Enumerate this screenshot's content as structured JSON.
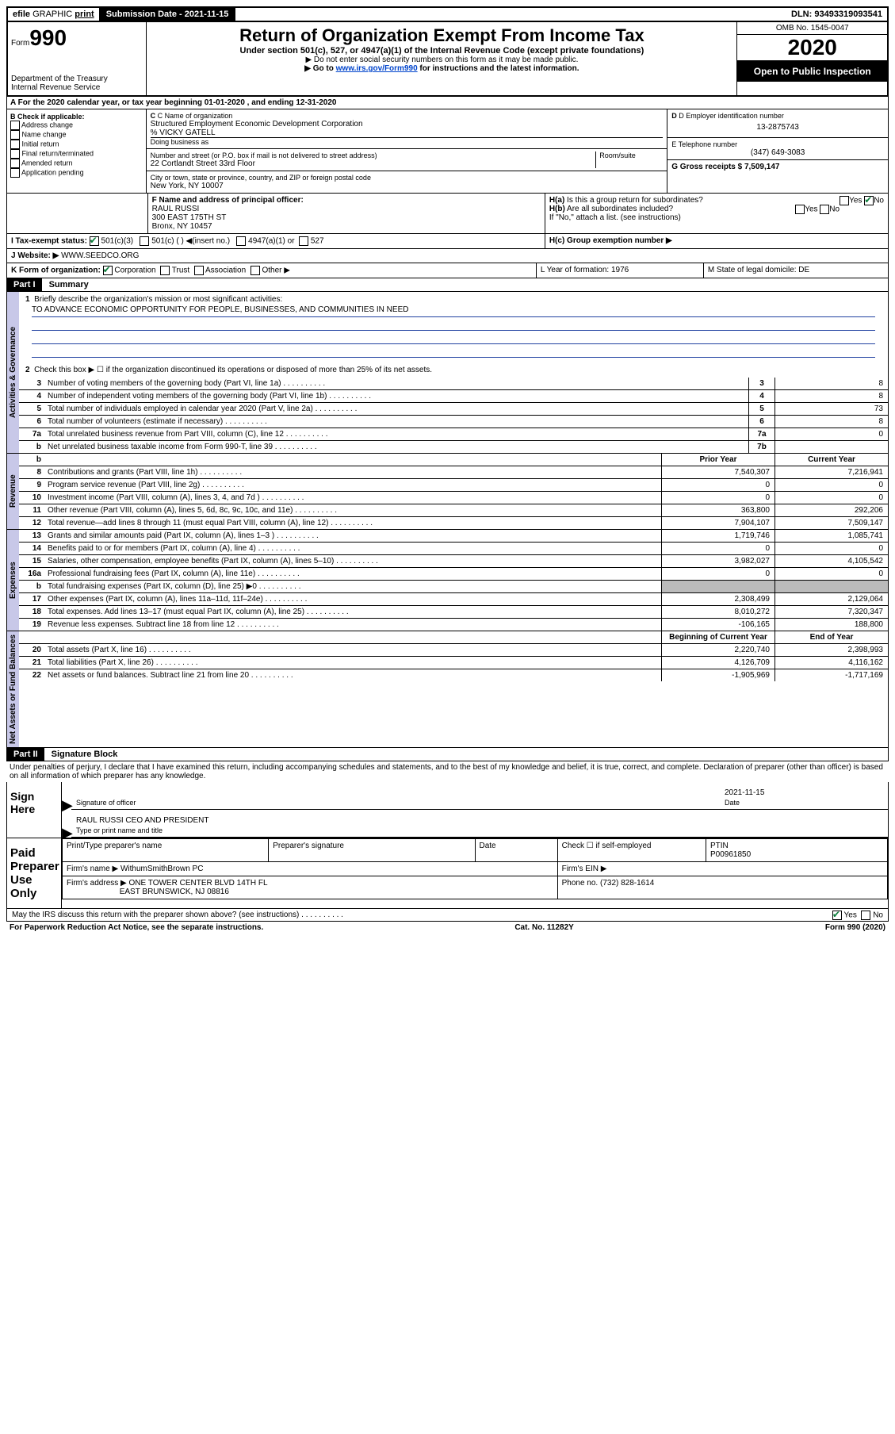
{
  "header": {
    "efile": "efile",
    "graphic": "GRAPHIC",
    "print": "print",
    "sub_label": "Submission Date - 2021-11-15",
    "dln": "DLN: 93493319093541"
  },
  "title_block": {
    "form": "Form",
    "num": "990",
    "dept1": "Department of the Treasury",
    "dept2": "Internal Revenue Service",
    "title": "Return of Organization Exempt From Income Tax",
    "sub1": "Under section 501(c), 527, or 4947(a)(1) of the Internal Revenue Code (except private foundations)",
    "sub2": "▶ Do not enter social security numbers on this form as it may be made public.",
    "sub3_pre": "▶ Go to ",
    "sub3_link": "www.irs.gov/Form990",
    "sub3_post": " for instructions and the latest information.",
    "omb": "OMB No. 1545-0047",
    "year": "2020",
    "open": "Open to Public Inspection"
  },
  "section_a": "A For the 2020 calendar year, or tax year beginning 01-01-2020   , and ending 12-31-2020",
  "box_b": {
    "label": "B Check if applicable:",
    "opts": [
      "Address change",
      "Name change",
      "Initial return",
      "Final return/terminated",
      "Amended return",
      "Application pending"
    ]
  },
  "box_c": {
    "name_label": "C Name of organization",
    "name": "Structured Employment Economic Development Corporation",
    "care": "% VICKY GATELL",
    "dba_label": "Doing business as",
    "addr_label": "Number and street (or P.O. box if mail is not delivered to street address)",
    "room": "Room/suite",
    "addr": "22 Cortlandt Street 33rd Floor",
    "city_label": "City or town, state or province, country, and ZIP or foreign postal code",
    "city": "New York, NY  10007"
  },
  "box_d": {
    "ein_label": "D Employer identification number",
    "ein": "13-2875743",
    "tel_label": "E Telephone number",
    "tel": "(347) 649-3083",
    "gross_label": "G Gross receipts $ 7,509,147"
  },
  "box_f": {
    "label": "F Name and address of principal officer:",
    "name": "RAUL RUSSI",
    "addr1": "300 EAST 175TH ST",
    "addr2": "Bronx, NY  10457"
  },
  "box_h": {
    "ha": "H(a)  Is this a group return for subordinates?",
    "hb": "H(b)  Are all subordinates included?",
    "hb_note": "If \"No,\" attach a list. (see instructions)",
    "hc": "H(c)  Group exemption number ▶",
    "yes": "Yes",
    "no": "No"
  },
  "box_i": {
    "label": "I   Tax-exempt status:",
    "c3": "501(c)(3)",
    "c": "501(c) (  ) ◀(insert no.)",
    "a1": "4947(a)(1) or",
    "s527": "527"
  },
  "box_j": {
    "label": "J   Website: ▶",
    "val": "  WWW.SEEDCO.ORG"
  },
  "box_k": {
    "label": "K Form of organization:",
    "corp": "Corporation",
    "trust": "Trust",
    "assoc": "Association",
    "other": "Other ▶"
  },
  "box_l": {
    "label": "L Year of formation: 1976"
  },
  "box_m": {
    "label": "M State of legal domicile: DE"
  },
  "part1": {
    "header": "Part I",
    "title": "Summary",
    "line1": "Briefly describe the organization's mission or most significant activities:",
    "mission": "TO ADVANCE ECONOMIC OPPORTUNITY FOR PEOPLE, BUSINESSES, AND COMMUNITIES IN NEED",
    "line2": "Check this box ▶ ☐  if the organization discontinued its operations or disposed of more than 25% of its net assets.",
    "rows_gov": [
      {
        "n": "3",
        "d": "Number of voting members of the governing body (Part VI, line 1a)",
        "c": "3",
        "v": "8"
      },
      {
        "n": "4",
        "d": "Number of independent voting members of the governing body (Part VI, line 1b)",
        "c": "4",
        "v": "8"
      },
      {
        "n": "5",
        "d": "Total number of individuals employed in calendar year 2020 (Part V, line 2a)",
        "c": "5",
        "v": "73"
      },
      {
        "n": "6",
        "d": "Total number of volunteers (estimate if necessary)",
        "c": "6",
        "v": "8"
      },
      {
        "n": "7a",
        "d": "Total unrelated business revenue from Part VIII, column (C), line 12",
        "c": "7a",
        "v": "0"
      },
      {
        "n": "b",
        "d": "Net unrelated business taxable income from Form 990-T, line 39",
        "c": "7b",
        "v": ""
      }
    ],
    "col_prior": "Prior Year",
    "col_current": "Current Year",
    "rows_rev": [
      {
        "n": "8",
        "d": "Contributions and grants (Part VIII, line 1h)",
        "p": "7,540,307",
        "c": "7,216,941"
      },
      {
        "n": "9",
        "d": "Program service revenue (Part VIII, line 2g)",
        "p": "0",
        "c": "0"
      },
      {
        "n": "10",
        "d": "Investment income (Part VIII, column (A), lines 3, 4, and 7d )",
        "p": "0",
        "c": "0"
      },
      {
        "n": "11",
        "d": "Other revenue (Part VIII, column (A), lines 5, 6d, 8c, 9c, 10c, and 11e)",
        "p": "363,800",
        "c": "292,206"
      },
      {
        "n": "12",
        "d": "Total revenue—add lines 8 through 11 (must equal Part VIII, column (A), line 12)",
        "p": "7,904,107",
        "c": "7,509,147"
      }
    ],
    "rows_exp": [
      {
        "n": "13",
        "d": "Grants and similar amounts paid (Part IX, column (A), lines 1–3 )",
        "p": "1,719,746",
        "c": "1,085,741"
      },
      {
        "n": "14",
        "d": "Benefits paid to or for members (Part IX, column (A), line 4)",
        "p": "0",
        "c": "0"
      },
      {
        "n": "15",
        "d": "Salaries, other compensation, employee benefits (Part IX, column (A), lines 5–10)",
        "p": "3,982,027",
        "c": "4,105,542"
      },
      {
        "n": "16a",
        "d": "Professional fundraising fees (Part IX, column (A), line 11e)",
        "p": "0",
        "c": "0"
      },
      {
        "n": "b",
        "d": "Total fundraising expenses (Part IX, column (D), line 25) ▶0",
        "p": "grey",
        "c": "grey"
      },
      {
        "n": "17",
        "d": "Other expenses (Part IX, column (A), lines 11a–11d, 11f–24e)",
        "p": "2,308,499",
        "c": "2,129,064"
      },
      {
        "n": "18",
        "d": "Total expenses. Add lines 13–17 (must equal Part IX, column (A), line 25)",
        "p": "8,010,272",
        "c": "7,320,347"
      },
      {
        "n": "19",
        "d": "Revenue less expenses. Subtract line 18 from line 12",
        "p": "-106,165",
        "c": "188,800"
      }
    ],
    "col_begin": "Beginning of Current Year",
    "col_end": "End of Year",
    "rows_net": [
      {
        "n": "20",
        "d": "Total assets (Part X, line 16)",
        "p": "2,220,740",
        "c": "2,398,993"
      },
      {
        "n": "21",
        "d": "Total liabilities (Part X, line 26)",
        "p": "4,126,709",
        "c": "4,116,162"
      },
      {
        "n": "22",
        "d": "Net assets or fund balances. Subtract line 21 from line 20",
        "p": "-1,905,969",
        "c": "-1,717,169"
      }
    ],
    "vert_gov": "Activities & Governance",
    "vert_rev": "Revenue",
    "vert_exp": "Expenses",
    "vert_net": "Net Assets or Fund Balances"
  },
  "part2": {
    "header": "Part II",
    "title": "Signature Block",
    "perjury": "Under penalties of perjury, I declare that I have examined this return, including accompanying schedules and statements, and to the best of my knowledge and belief, it is true, correct, and complete. Declaration of preparer (other than officer) is based on all information of which preparer has any knowledge.",
    "sign_here": "Sign Here",
    "sig_officer": "Signature of officer",
    "sig_date": "2021-11-15",
    "date_label": "Date",
    "name_title": "RAUL RUSSI  CEO AND PRESIDENT",
    "type_label": "Type or print name and title",
    "paid": "Paid Preparer Use Only",
    "prep_name_label": "Print/Type preparer's name",
    "prep_sig_label": "Preparer's signature",
    "check_self": "Check ☐ if self-employed",
    "ptin_label": "PTIN",
    "ptin": "P00961850",
    "firm_name_label": "Firm's name    ▶",
    "firm_name": "WithumSmithBrown PC",
    "firm_ein_label": "Firm's EIN ▶",
    "firm_addr_label": "Firm's address ▶",
    "firm_addr1": "ONE TOWER CENTER BLVD 14TH FL",
    "firm_addr2": "EAST BRUNSWICK, NJ  08816",
    "phone_label": "Phone no.",
    "phone": "(732) 828-1614",
    "discuss": "May the IRS discuss this return with the preparer shown above? (see instructions)"
  },
  "footer": {
    "left": "For Paperwork Reduction Act Notice, see the separate instructions.",
    "mid": "Cat. No. 11282Y",
    "right": "Form 990 (2020)"
  }
}
